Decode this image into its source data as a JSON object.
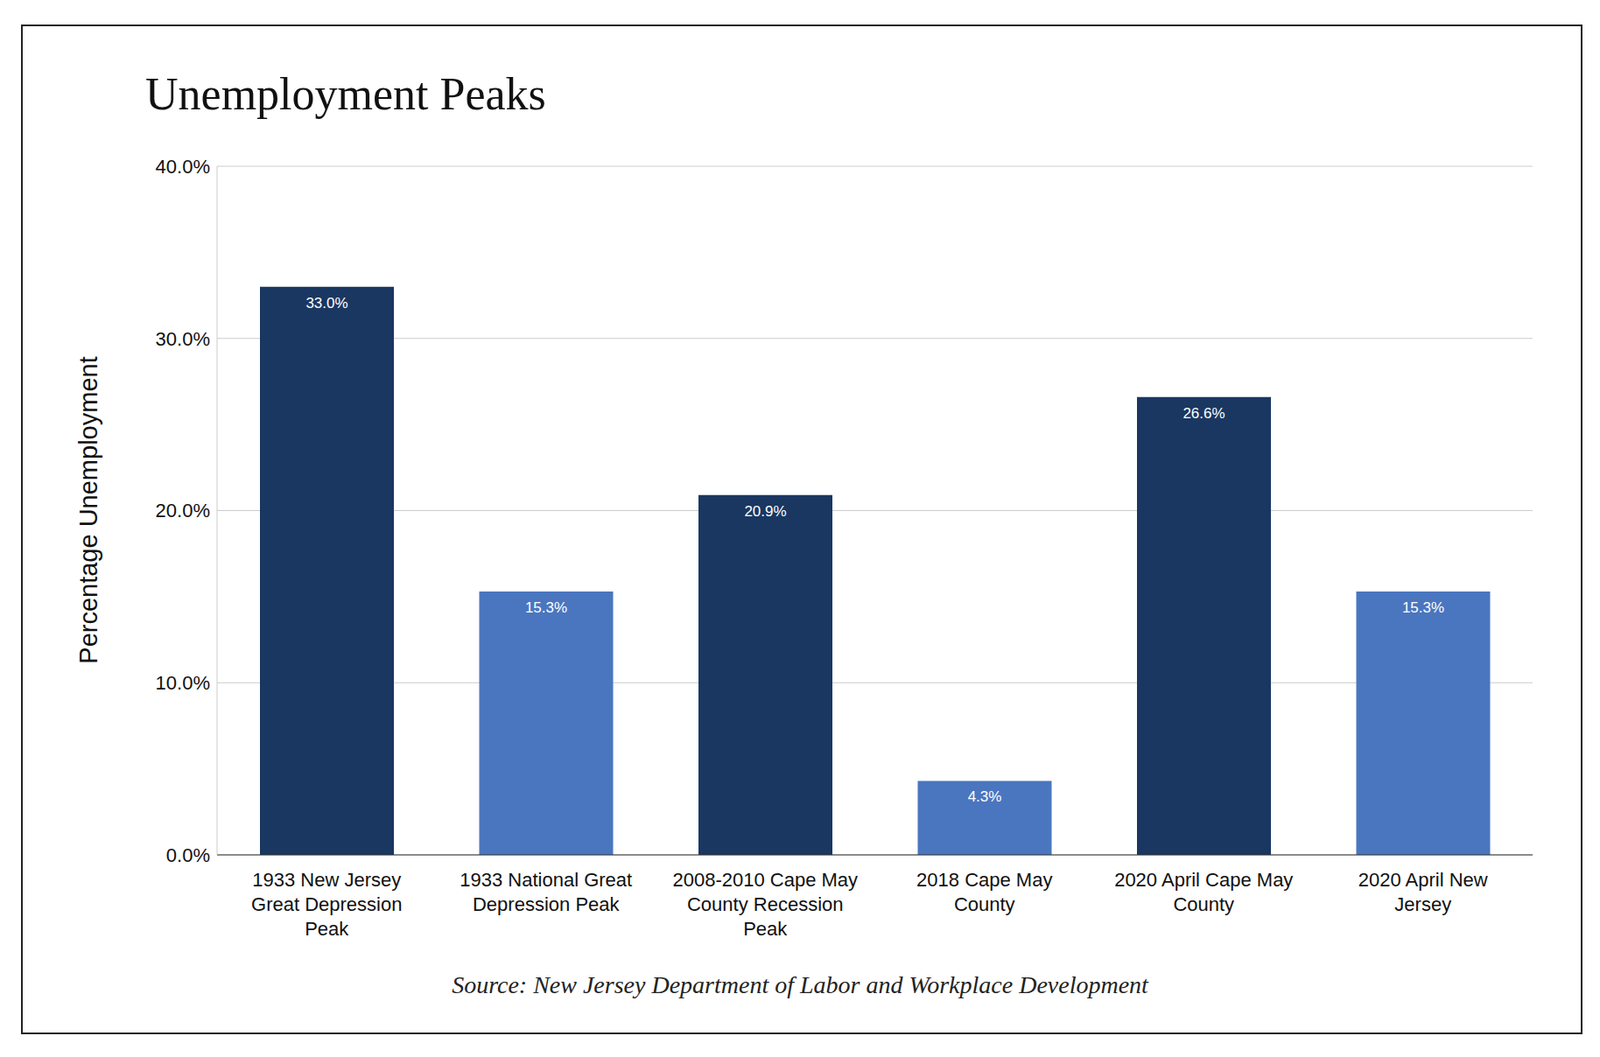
{
  "chart_data": {
    "type": "bar",
    "title": "Unemployment Peaks",
    "ylabel": "Percentage Unemployment",
    "source": "Source: New Jersey Department of Labor and Workplace Development",
    "categories": [
      "1933 New Jersey Great Depression Peak",
      "1933 National Great Depression Peak",
      "2008-2010 Cape May County Recession Peak",
      "2018 Cape May County",
      "2020 April Cape May County",
      "2020 April New Jersey"
    ],
    "values": [
      33.0,
      15.3,
      20.9,
      4.3,
      26.6,
      15.3
    ],
    "value_labels": [
      "33.0%",
      "15.3%",
      "20.9%",
      "4.3%",
      "26.6%",
      "15.3%"
    ],
    "colors": [
      "#1a3762",
      "#4a76bf",
      "#1a3762",
      "#4a76bf",
      "#1a3762",
      "#4a76bf"
    ],
    "ylim": [
      0,
      40
    ],
    "yticks": [
      {
        "value": 0,
        "label": "0.0%"
      },
      {
        "value": 10,
        "label": "10.0%"
      },
      {
        "value": 20,
        "label": "20.0%"
      },
      {
        "value": 30,
        "label": "30.0%"
      },
      {
        "value": 40,
        "label": "40.0%"
      }
    ],
    "grid": true,
    "data_labels": true
  }
}
